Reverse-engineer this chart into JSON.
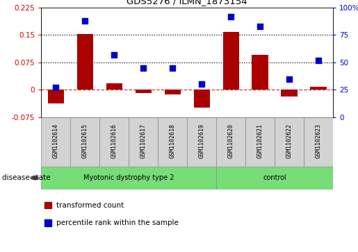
{
  "title": "GDS5276 / ILMN_1873154",
  "samples": [
    "GSM1102614",
    "GSM1102615",
    "GSM1102616",
    "GSM1102617",
    "GSM1102618",
    "GSM1102619",
    "GSM1102620",
    "GSM1102621",
    "GSM1102622",
    "GSM1102623"
  ],
  "transformed_count": [
    -0.038,
    0.152,
    0.018,
    -0.008,
    -0.012,
    -0.048,
    0.158,
    0.095,
    -0.018,
    0.008
  ],
  "percentile_rank": [
    27,
    88,
    57,
    45,
    45,
    30,
    92,
    83,
    35,
    52
  ],
  "group1_count": 6,
  "group2_count": 4,
  "group1_label": "Myotonic dystrophy type 2",
  "group2_label": "control",
  "group_color": "#77DD77",
  "ylim_left": [
    -0.075,
    0.225
  ],
  "ylim_right": [
    0,
    100
  ],
  "yticks_left": [
    -0.075,
    0,
    0.075,
    0.15,
    0.225
  ],
  "yticks_right": [
    0,
    25,
    50,
    75,
    100
  ],
  "dotted_lines": [
    0.075,
    0.15
  ],
  "bar_color": "#AA0000",
  "dot_color": "#0000CC",
  "zero_line_color": "#CC0000",
  "bg_color": "#FFFFFF",
  "label_color_left": "#CC0000",
  "label_color_right": "#0000CC",
  "legend_items": [
    {
      "label": "transformed count",
      "color": "#AA0000"
    },
    {
      "label": "percentile rank within the sample",
      "color": "#0000CC"
    }
  ],
  "disease_state_label": "disease state",
  "sample_box_color": "#D3D3D3",
  "border_color": "#888888"
}
